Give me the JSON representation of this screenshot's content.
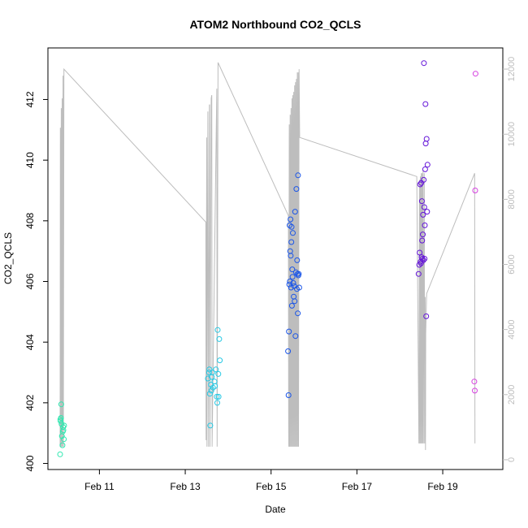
{
  "chart_data": {
    "type": "scatter",
    "title": "ATOM2 Northbound CO2_QCLS",
    "xlabel": "Date",
    "ylabel": "CO2_QCLS",
    "xlim": [
      "2016-02-09T19:12",
      "2016-02-20T09:36"
    ],
    "ylim": [
      399.8,
      413.7
    ],
    "y2lim": [
      -300,
      12650
    ],
    "x_ticks": [
      {
        "label": "Feb 11",
        "date": "2016-02-11"
      },
      {
        "label": "Feb 13",
        "date": "2016-02-13"
      },
      {
        "label": "Feb 15",
        "date": "2016-02-15"
      },
      {
        "label": "Feb 17",
        "date": "2016-02-17"
      },
      {
        "label": "Feb 19",
        "date": "2016-02-19"
      }
    ],
    "y_ticks": [
      400,
      402,
      404,
      406,
      408,
      410,
      412
    ],
    "y2_ticks": [
      0,
      2000,
      4000,
      6000,
      8000,
      10000,
      12000
    ],
    "y2_color": "#bdbdbd",
    "grid": false,
    "legend": "none",
    "points": [
      {
        "x": "2016-02-10T02:00",
        "y": 400.3,
        "color": "#2ee8b0"
      },
      {
        "x": "2016-02-10T02:15",
        "y": 401.4,
        "color": "#2ee8b0"
      },
      {
        "x": "2016-02-10T02:30",
        "y": 401.5,
        "color": "#2ee8b0"
      },
      {
        "x": "2016-02-10T02:40",
        "y": 401.95,
        "color": "#2ee8b0"
      },
      {
        "x": "2016-02-10T03:00",
        "y": 400.9,
        "color": "#2ee8b0"
      },
      {
        "x": "2016-02-10T03:20",
        "y": 400.6,
        "color": "#2ee8b0"
      },
      {
        "x": "2016-02-10T03:30",
        "y": 401.05,
        "color": "#2ee8b0"
      },
      {
        "x": "2016-02-10T03:40",
        "y": 401.2,
        "color": "#2ee8b0"
      },
      {
        "x": "2016-02-10T03:50",
        "y": 401.1,
        "color": "#2ee8b0"
      },
      {
        "x": "2016-02-10T04:05",
        "y": 400.8,
        "color": "#2ee8b0"
      },
      {
        "x": "2016-02-10T04:15",
        "y": 401.25,
        "color": "#2ee8b0"
      },
      {
        "x": "2016-02-10T02:10",
        "y": 401.45,
        "color": "#2ee8b0"
      },
      {
        "x": "2016-02-10T02:50",
        "y": 401.3,
        "color": "#2ee8b0"
      },
      {
        "x": "2016-02-13T12:40",
        "y": 402.8,
        "color": "#27c9e4"
      },
      {
        "x": "2016-02-13T13:20",
        "y": 403.0,
        "color": "#27c9e4"
      },
      {
        "x": "2016-02-13T13:30",
        "y": 403.1,
        "color": "#27c9e4"
      },
      {
        "x": "2016-02-13T13:45",
        "y": 402.3,
        "color": "#27c9e4"
      },
      {
        "x": "2016-02-13T14:00",
        "y": 401.25,
        "color": "#27c9e4"
      },
      {
        "x": "2016-02-13T14:20",
        "y": 402.6,
        "color": "#27c9e4"
      },
      {
        "x": "2016-02-13T14:35",
        "y": 402.4,
        "color": "#27c9e4"
      },
      {
        "x": "2016-02-13T14:50",
        "y": 402.85,
        "color": "#27c9e4"
      },
      {
        "x": "2016-02-13T15:10",
        "y": 403.0,
        "color": "#27c9e4"
      },
      {
        "x": "2016-02-13T15:30",
        "y": 402.5,
        "color": "#27c9e4"
      },
      {
        "x": "2016-02-13T16:20",
        "y": 402.7,
        "color": "#27c9e4"
      },
      {
        "x": "2016-02-13T16:40",
        "y": 402.55,
        "color": "#27c9e4"
      },
      {
        "x": "2016-02-13T17:10",
        "y": 403.1,
        "color": "#27c9e4"
      },
      {
        "x": "2016-02-13T17:40",
        "y": 402.2,
        "color": "#27c9e4"
      },
      {
        "x": "2016-02-13T17:55",
        "y": 402.0,
        "color": "#27c9e4"
      },
      {
        "x": "2016-02-13T18:10",
        "y": 404.4,
        "color": "#27c9e4"
      },
      {
        "x": "2016-02-13T18:30",
        "y": 402.95,
        "color": "#27c9e4"
      },
      {
        "x": "2016-02-13T18:40",
        "y": 402.2,
        "color": "#27c9e4"
      },
      {
        "x": "2016-02-13T19:00",
        "y": 404.1,
        "color": "#27c9e4"
      },
      {
        "x": "2016-02-13T19:20",
        "y": 403.4,
        "color": "#27c9e4"
      },
      {
        "x": "2016-02-15T09:30",
        "y": 403.7,
        "color": "#1a55e8"
      },
      {
        "x": "2016-02-15T09:45",
        "y": 402.25,
        "color": "#1a55e8"
      },
      {
        "x": "2016-02-15T10:00",
        "y": 404.35,
        "color": "#1a55e8"
      },
      {
        "x": "2016-02-15T10:10",
        "y": 405.9,
        "color": "#1a55e8"
      },
      {
        "x": "2016-02-15T10:20",
        "y": 407.85,
        "color": "#1a55e8"
      },
      {
        "x": "2016-02-15T10:30",
        "y": 406.0,
        "color": "#1a55e8"
      },
      {
        "x": "2016-02-15T10:40",
        "y": 407.0,
        "color": "#1a55e8"
      },
      {
        "x": "2016-02-15T10:50",
        "y": 408.05,
        "color": "#1a55e8"
      },
      {
        "x": "2016-02-15T11:00",
        "y": 406.85,
        "color": "#1a55e8"
      },
      {
        "x": "2016-02-15T11:10",
        "y": 405.8,
        "color": "#1a55e8"
      },
      {
        "x": "2016-02-15T11:20",
        "y": 407.3,
        "color": "#1a55e8"
      },
      {
        "x": "2016-02-15T11:30",
        "y": 407.8,
        "color": "#1a55e8"
      },
      {
        "x": "2016-02-15T11:40",
        "y": 405.2,
        "color": "#1a55e8"
      },
      {
        "x": "2016-02-15T11:50",
        "y": 406.4,
        "color": "#1a55e8"
      },
      {
        "x": "2016-02-15T12:00",
        "y": 406.15,
        "color": "#1a55e8"
      },
      {
        "x": "2016-02-15T12:10",
        "y": 407.6,
        "color": "#1a55e8"
      },
      {
        "x": "2016-02-15T12:25",
        "y": 405.95,
        "color": "#1a55e8"
      },
      {
        "x": "2016-02-15T12:40",
        "y": 405.5,
        "color": "#1a55e8"
      },
      {
        "x": "2016-02-15T12:55",
        "y": 405.85,
        "color": "#1a55e8"
      },
      {
        "x": "2016-02-15T13:10",
        "y": 405.35,
        "color": "#1a55e8"
      },
      {
        "x": "2016-02-15T13:25",
        "y": 408.3,
        "color": "#1a55e8"
      },
      {
        "x": "2016-02-15T13:40",
        "y": 404.2,
        "color": "#1a55e8"
      },
      {
        "x": "2016-02-15T13:55",
        "y": 406.3,
        "color": "#1a55e8"
      },
      {
        "x": "2016-02-15T14:10",
        "y": 409.05,
        "color": "#1a55e8"
      },
      {
        "x": "2016-02-15T14:25",
        "y": 405.75,
        "color": "#1a55e8"
      },
      {
        "x": "2016-02-15T14:35",
        "y": 406.7,
        "color": "#1a55e8"
      },
      {
        "x": "2016-02-15T14:45",
        "y": 406.25,
        "color": "#1a55e8"
      },
      {
        "x": "2016-02-15T14:55",
        "y": 404.95,
        "color": "#1a55e8"
      },
      {
        "x": "2016-02-15T15:05",
        "y": 409.5,
        "color": "#1a55e8"
      },
      {
        "x": "2016-02-15T15:15",
        "y": 406.2,
        "color": "#1a55e8"
      },
      {
        "x": "2016-02-15T15:30",
        "y": 406.25,
        "color": "#1a55e8"
      },
      {
        "x": "2016-02-15T15:45",
        "y": 405.8,
        "color": "#1a55e8"
      },
      {
        "x": "2016-02-18T10:30",
        "y": 406.25,
        "color": "#6414d9"
      },
      {
        "x": "2016-02-18T10:50",
        "y": 406.55,
        "color": "#6414d9"
      },
      {
        "x": "2016-02-18T11:05",
        "y": 406.95,
        "color": "#6414d9"
      },
      {
        "x": "2016-02-18T11:20",
        "y": 409.2,
        "color": "#6414d9"
      },
      {
        "x": "2016-02-18T11:35",
        "y": 406.65,
        "color": "#6414d9"
      },
      {
        "x": "2016-02-18T11:50",
        "y": 406.6,
        "color": "#6414d9"
      },
      {
        "x": "2016-02-18T12:00",
        "y": 409.25,
        "color": "#6414d9"
      },
      {
        "x": "2016-02-18T12:10",
        "y": 406.8,
        "color": "#6414d9"
      },
      {
        "x": "2016-02-18T12:20",
        "y": 408.65,
        "color": "#6414d9"
      },
      {
        "x": "2016-02-18T12:30",
        "y": 407.35,
        "color": "#6414d9"
      },
      {
        "x": "2016-02-18T12:40",
        "y": 406.75,
        "color": "#6414d9"
      },
      {
        "x": "2016-02-18T12:50",
        "y": 407.55,
        "color": "#6414d9"
      },
      {
        "x": "2016-02-18T13:00",
        "y": 408.2,
        "color": "#6414d9"
      },
      {
        "x": "2016-02-18T13:10",
        "y": 406.7,
        "color": "#6414d9"
      },
      {
        "x": "2016-02-18T13:20",
        "y": 409.35,
        "color": "#6414d9"
      },
      {
        "x": "2016-02-18T13:30",
        "y": 413.2,
        "color": "#6414d9"
      },
      {
        "x": "2016-02-18T13:40",
        "y": 408.45,
        "color": "#6414d9"
      },
      {
        "x": "2016-02-18T13:50",
        "y": 406.75,
        "color": "#6414d9"
      },
      {
        "x": "2016-02-18T14:00",
        "y": 407.85,
        "color": "#6414d9"
      },
      {
        "x": "2016-02-18T14:10",
        "y": 409.7,
        "color": "#6414d9"
      },
      {
        "x": "2016-02-18T14:20",
        "y": 411.85,
        "color": "#6414d9"
      },
      {
        "x": "2016-02-18T14:30",
        "y": 410.55,
        "color": "#6414d9"
      },
      {
        "x": "2016-02-18T14:45",
        "y": 404.85,
        "color": "#6414d9"
      },
      {
        "x": "2016-02-18T15:00",
        "y": 410.7,
        "color": "#6414d9"
      },
      {
        "x": "2016-02-18T15:15",
        "y": 408.3,
        "color": "#6414d9"
      },
      {
        "x": "2016-02-18T15:30",
        "y": 409.85,
        "color": "#6414d9"
      },
      {
        "x": "2016-02-19T17:40",
        "y": 402.7,
        "color": "#d63fe0"
      },
      {
        "x": "2016-02-19T17:55",
        "y": 402.4,
        "color": "#d63fe0"
      },
      {
        "x": "2016-02-19T18:10",
        "y": 409.0,
        "color": "#d63fe0"
      },
      {
        "x": "2016-02-19T18:20",
        "y": 412.85,
        "color": "#d63fe0"
      }
    ],
    "altitude_line": [
      [
        "2016-02-10T02:00",
        400
      ],
      [
        "2016-02-10T02:10",
        10200
      ],
      [
        "2016-02-10T02:20",
        400
      ],
      [
        "2016-02-10T02:40",
        10800
      ],
      [
        "2016-02-10T02:50",
        400
      ],
      [
        "2016-02-10T03:10",
        11100
      ],
      [
        "2016-02-10T03:20",
        400
      ],
      [
        "2016-02-10T03:40",
        11800
      ],
      [
        "2016-02-10T03:50",
        400
      ],
      [
        "2016-02-10T04:10",
        12000
      ],
      [
        "2016-02-13T11:30",
        7300
      ],
      [
        "2016-02-13T11:40",
        600
      ],
      [
        "2016-02-13T12:00",
        9900
      ],
      [
        "2016-02-13T12:10",
        400
      ],
      [
        "2016-02-13T12:40",
        10700
      ],
      [
        "2016-02-13T13:00",
        400
      ],
      [
        "2016-02-13T13:30",
        10900
      ],
      [
        "2016-02-13T13:40",
        10900
      ],
      [
        "2016-02-13T13:50",
        400
      ],
      [
        "2016-02-13T14:30",
        11100
      ],
      [
        "2016-02-13T14:50",
        11200
      ],
      [
        "2016-02-13T15:00",
        400
      ],
      [
        "2016-02-13T17:40",
        11400
      ],
      [
        "2016-02-13T17:50",
        400
      ],
      [
        "2016-02-13T18:20",
        12200
      ],
      [
        "2016-02-15T09:40",
        7500
      ],
      [
        "2016-02-15T09:50",
        400
      ],
      [
        "2016-02-15T10:10",
        10300
      ],
      [
        "2016-02-15T10:20",
        400
      ],
      [
        "2016-02-15T10:40",
        10600
      ],
      [
        "2016-02-15T10:50",
        400
      ],
      [
        "2016-02-15T11:10",
        10800
      ],
      [
        "2016-02-15T11:20",
        400
      ],
      [
        "2016-02-15T11:40",
        11100
      ],
      [
        "2016-02-15T11:50",
        400
      ],
      [
        "2016-02-15T12:10",
        11200
      ],
      [
        "2016-02-15T12:20",
        400
      ],
      [
        "2016-02-15T12:40",
        11300
      ],
      [
        "2016-02-15T12:50",
        400
      ],
      [
        "2016-02-15T13:10",
        11500
      ],
      [
        "2016-02-15T13:20",
        400
      ],
      [
        "2016-02-15T13:40",
        11600
      ],
      [
        "2016-02-15T13:50",
        400
      ],
      [
        "2016-02-15T14:10",
        11700
      ],
      [
        "2016-02-15T14:20",
        400
      ],
      [
        "2016-02-15T14:40",
        11900
      ],
      [
        "2016-02-15T14:50",
        400
      ],
      [
        "2016-02-15T15:10",
        11900
      ],
      [
        "2016-02-15T15:20",
        400
      ],
      [
        "2016-02-15T15:40",
        12000
      ],
      [
        "2016-02-15T16:00",
        9900
      ],
      [
        "2016-02-18T09:30",
        8700
      ],
      [
        "2016-02-18T10:40",
        500
      ],
      [
        "2016-02-18T11:00",
        8600
      ],
      [
        "2016-02-18T11:10",
        500
      ],
      [
        "2016-02-18T11:30",
        8700
      ],
      [
        "2016-02-18T11:40",
        500
      ],
      [
        "2016-02-18T12:00",
        8800
      ],
      [
        "2016-02-18T12:10",
        500
      ],
      [
        "2016-02-18T12:30",
        8800
      ],
      [
        "2016-02-18T12:40",
        500
      ],
      [
        "2016-02-18T13:00",
        8900
      ],
      [
        "2016-02-18T13:10",
        500
      ],
      [
        "2016-02-18T13:40",
        8800
      ],
      [
        "2016-02-18T13:50",
        500
      ],
      [
        "2016-02-18T14:10",
        5000
      ],
      [
        "2016-02-18T14:20",
        300
      ],
      [
        "2016-02-18T14:30",
        3900
      ],
      [
        "2016-02-18T15:00",
        5100
      ],
      [
        "2016-02-19T17:50",
        8800
      ],
      [
        "2016-02-19T18:00",
        500
      ]
    ]
  }
}
